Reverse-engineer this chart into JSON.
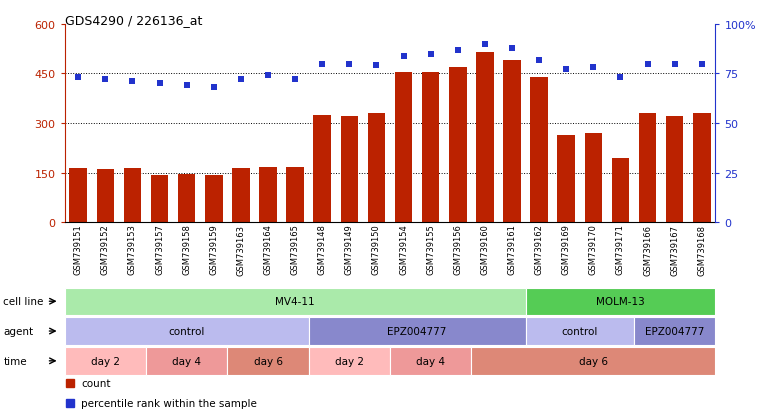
{
  "title": "GDS4290 / 226136_at",
  "samples": [
    "GSM739151",
    "GSM739152",
    "GSM739153",
    "GSM739157",
    "GSM739158",
    "GSM739159",
    "GSM739163",
    "GSM739164",
    "GSM739165",
    "GSM739148",
    "GSM739149",
    "GSM739150",
    "GSM739154",
    "GSM739155",
    "GSM739156",
    "GSM739160",
    "GSM739161",
    "GSM739162",
    "GSM739169",
    "GSM739170",
    "GSM739171",
    "GSM739166",
    "GSM739167",
    "GSM739168"
  ],
  "counts": [
    165,
    162,
    165,
    143,
    147,
    143,
    165,
    168,
    168,
    325,
    320,
    330,
    455,
    455,
    470,
    515,
    490,
    440,
    265,
    270,
    195,
    330,
    320,
    330
  ],
  "percentile_ranks": [
    73,
    72,
    71,
    70,
    69,
    68,
    72,
    74,
    72,
    80,
    80,
    79,
    84,
    85,
    87,
    90,
    88,
    82,
    77,
    78,
    73,
    80,
    80,
    80
  ],
  "bar_color": "#bb2200",
  "dot_color": "#2233cc",
  "ylim_left": [
    0,
    600
  ],
  "ylim_right": [
    0,
    100
  ],
  "yticks_left": [
    0,
    150,
    300,
    450,
    600
  ],
  "ytick_labels_left": [
    "0",
    "150",
    "300",
    "450",
    "600"
  ],
  "yticks_right": [
    0,
    25,
    50,
    75,
    100
  ],
  "ytick_labels_right": [
    "0",
    "25",
    "50",
    "75",
    "100%"
  ],
  "grid_values": [
    150,
    300,
    450
  ],
  "cell_line_groups": [
    {
      "label": "MV4-11",
      "start": 0,
      "end": 17,
      "color": "#aaeaaa"
    },
    {
      "label": "MOLM-13",
      "start": 17,
      "end": 24,
      "color": "#55cc55"
    }
  ],
  "agent_groups": [
    {
      "label": "control",
      "start": 0,
      "end": 9,
      "color": "#bbbbee"
    },
    {
      "label": "EPZ004777",
      "start": 9,
      "end": 17,
      "color": "#8888cc"
    },
    {
      "label": "control",
      "start": 17,
      "end": 21,
      "color": "#bbbbee"
    },
    {
      "label": "EPZ004777",
      "start": 21,
      "end": 24,
      "color": "#8888cc"
    }
  ],
  "time_groups": [
    {
      "label": "day 2",
      "start": 0,
      "end": 3,
      "color": "#ffbbbb"
    },
    {
      "label": "day 4",
      "start": 3,
      "end": 6,
      "color": "#ee9999"
    },
    {
      "label": "day 6",
      "start": 6,
      "end": 9,
      "color": "#dd8877"
    },
    {
      "label": "day 2",
      "start": 9,
      "end": 12,
      "color": "#ffbbbb"
    },
    {
      "label": "day 4",
      "start": 12,
      "end": 15,
      "color": "#ee9999"
    },
    {
      "label": "day 6",
      "start": 15,
      "end": 24,
      "color": "#dd8877"
    }
  ],
  "row_labels": [
    "cell line",
    "agent",
    "time"
  ],
  "legend_items": [
    {
      "label": "count",
      "color": "#bb2200"
    },
    {
      "label": "percentile rank within the sample",
      "color": "#2233cc"
    }
  ],
  "background_color": "#ffffff"
}
